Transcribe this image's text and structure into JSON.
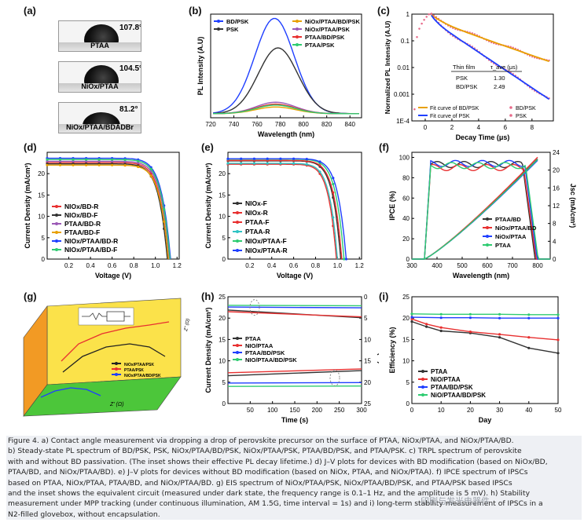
{
  "labels": {
    "a": "(a)",
    "b": "(b)",
    "c": "(c)",
    "d": "(d)",
    "e": "(e)",
    "f": "(f)",
    "g": "(g)",
    "h": "(h)",
    "i": "(i)"
  },
  "panel_a": {
    "images": [
      {
        "angle": "107.8°",
        "label": "PTAA"
      },
      {
        "angle": "104.5°",
        "label": "NiOx/PTAA"
      },
      {
        "angle": "81.2°",
        "label": "NiOx/PTAA/BDADBr"
      }
    ]
  },
  "chart_data": [
    {
      "id": "b",
      "type": "line",
      "xlabel": "Wavelength (nm)",
      "ylabel": "PL Intensity (A.U)",
      "x_ticks": [
        "720",
        "740",
        "760",
        "780",
        "800",
        "820",
        "840"
      ],
      "xlim": [
        720,
        850
      ],
      "legend": [
        "BD/PSK",
        "PSK",
        "NiOx/PTAA/BD/PSK",
        "NiOx/PTAA/PSK",
        "PTAA/BD/PSK",
        "PTAA/PSK"
      ],
      "series": [
        {
          "name": "BD/PSK",
          "color": "#1f3fff",
          "peak_x": 775,
          "peak": 1.0
        },
        {
          "name": "PSK",
          "color": "#333333",
          "peak_x": 778,
          "peak": 0.69
        },
        {
          "name": "NiOx/PTAA/BD/PSK",
          "color": "#e8a000",
          "peak_x": 776,
          "peak": 0.07
        },
        {
          "name": "NiOx/PTAA/PSK",
          "color": "#9b59b6",
          "peak_x": 776,
          "peak": 0.12
        },
        {
          "name": "PTAA/BD/PSK",
          "color": "#e83030",
          "peak_x": 776,
          "peak": 0.1
        },
        {
          "name": "PTAA/PSK",
          "color": "#2ecc71",
          "peak_x": 776,
          "peak": 0.09
        }
      ]
    },
    {
      "id": "c",
      "type": "line",
      "xlabel": "Decay Time (μs)",
      "ylabel": "Normalized PL Intensity (A.U)",
      "x_ticks": [
        "0",
        "2",
        "4",
        "6",
        "8"
      ],
      "y_ticks": [
        "1",
        "0.1",
        "0.01",
        "0.001",
        "1E-4"
      ],
      "xlim": [
        -1,
        9.6
      ],
      "ylog": [
        -4,
        0
      ],
      "legend": [
        "Fit curve of BD/PSK",
        "Fit curve of PSK",
        "BD/PSK",
        "PSK"
      ],
      "table": {
        "header": [
          "Thin film",
          "τ_ave (μs)"
        ],
        "rows": [
          [
            "PSK",
            "1.30"
          ],
          [
            "BD/PSK",
            "2.49"
          ]
        ]
      },
      "series": [
        {
          "name": "BD/PSK",
          "color": "#e8a000",
          "tau": 2.49
        },
        {
          "name": "PSK",
          "color": "#1f3fff",
          "tau": 1.3
        }
      ]
    },
    {
      "id": "d",
      "type": "line",
      "xlabel": "Voltage (V)",
      "ylabel": "Current Density (mA/cm²)",
      "x_ticks": [
        "0.2",
        "0.4",
        "0.6",
        "0.8",
        "1.0",
        "1.2"
      ],
      "y_ticks": [
        "0",
        "5",
        "10",
        "15",
        "20"
      ],
      "xlim": [
        0,
        1.22
      ],
      "ylim": [
        0,
        25
      ],
      "legend": [
        "NIOx/BD-R",
        "NIOx/BD-F",
        "PTAA/BD-R",
        "PTAA/BD-F",
        "NIOx/PTAA/BD-R",
        "NIOx/PTAA/BD-F"
      ],
      "series": [
        {
          "name": "NIOx/BD-R",
          "color": "#e83030",
          "jsc": 22.6,
          "voc": 1.12
        },
        {
          "name": "NIOx/BD-F",
          "color": "#333333",
          "jsc": 22.3,
          "voc": 1.11
        },
        {
          "name": "PTAA/BD-R",
          "color": "#9b59b6",
          "jsc": 22.9,
          "voc": 1.13
        },
        {
          "name": "PTAA/BD-F",
          "color": "#e8a000",
          "jsc": 22.0,
          "voc": 1.12
        },
        {
          "name": "NIOx/PTAA/BD-R",
          "color": "#1f3fff",
          "jsc": 23.6,
          "voc": 1.14
        },
        {
          "name": "NIOx/PTAA/BD-F",
          "color": "#2ecc71",
          "jsc": 23.3,
          "voc": 1.135
        }
      ]
    },
    {
      "id": "e",
      "type": "line",
      "xlabel": "Voltage (V)",
      "ylabel": "Current Density (mA/cm²)",
      "x_ticks": [
        "0.2",
        "0.4",
        "0.6",
        "0.8",
        "1.0",
        "1.2"
      ],
      "y_ticks": [
        "0",
        "5",
        "10",
        "15",
        "20"
      ],
      "xlim": [
        0,
        1.22
      ],
      "ylim": [
        0,
        25
      ],
      "legend": [
        "NIOx-F",
        "NIOx-R",
        "PTAA-F",
        "PTAA-R",
        "NIOx/PTAA-F",
        "NIOx/PTAA-R"
      ],
      "series": [
        {
          "name": "NIOx-F",
          "color": "#333333",
          "jsc": 23.0,
          "voc": 1.03
        },
        {
          "name": "NIOx-R",
          "color": "#e83030",
          "jsc": 23.1,
          "voc": 1.04
        },
        {
          "name": "PTAA-F",
          "color": "#e83030",
          "jsc": 22.2,
          "voc": 0.99
        },
        {
          "name": "PTAA-R",
          "color": "#2fc4c4",
          "jsc": 22.4,
          "voc": 1.0
        },
        {
          "name": "NIOx/PTAA-F",
          "color": "#2ecc71",
          "jsc": 23.4,
          "voc": 1.06
        },
        {
          "name": "NIOx/PTAA-R",
          "color": "#1f3fff",
          "jsc": 23.5,
          "voc": 1.08
        }
      ]
    },
    {
      "id": "f",
      "type": "line",
      "xlabel": "Wavelength (nm)",
      "ylabel": "IPCE (%)",
      "ylabel2": "Jsc (mA/cm²)",
      "x_ticks": [
        "300",
        "400",
        "500",
        "600",
        "700",
        "800"
      ],
      "y_ticks": [
        "0",
        "20",
        "40",
        "60",
        "80",
        "100"
      ],
      "y2_ticks": [
        "0",
        "4",
        "8",
        "12",
        "16",
        "20",
        "24"
      ],
      "xlim": [
        300,
        850
      ],
      "ylim": [
        0,
        105
      ],
      "y2lim": [
        0,
        24
      ],
      "legend": [
        "PTAA/BD",
        "NiOx/PTAA/BD",
        "NiOx/PTAA",
        "PTAA"
      ],
      "series": [
        {
          "name": "PTAA/BD",
          "color": "#333333",
          "plateau": 93,
          "jsc": 22.5
        },
        {
          "name": "NiOx/PTAA/BD",
          "color": "#e83030",
          "plateau": 90,
          "jsc": 22.9
        },
        {
          "name": "NiOx/PTAA",
          "color": "#1f3fff",
          "plateau": 94,
          "jsc": 22.2
        },
        {
          "name": "PTAA",
          "color": "#2ecc71",
          "plateau": 92,
          "jsc": 22.4
        }
      ]
    },
    {
      "id": "g",
      "type": "scatter",
      "xlabel": "Z' (Ω)",
      "ylabel": "Z'' (Ω)",
      "legend": [
        "NiOx/PTAA/PSK",
        "PTAA/PSK",
        "NiOx/PTAA/BD/PSK"
      ]
    },
    {
      "id": "h",
      "type": "line",
      "xlabel": "Time (s)",
      "ylabel": "Current Density (mA/cm²)",
      "ylabel2": "PCE (%)",
      "x_ticks": [
        "50",
        "100",
        "150",
        "200",
        "250",
        "300"
      ],
      "y_ticks": [
        "0",
        "5",
        "10",
        "15",
        "20",
        "25"
      ],
      "y2_ticks": [
        "0",
        "5",
        "10",
        "15",
        "20",
        "25"
      ],
      "xlim": [
        0,
        300
      ],
      "ylim": [
        0,
        25
      ],
      "legend": [
        "PTAA",
        "NIO/PTAA",
        "PTAA/BD/PSK",
        "NIO/PTAA/BD/PSK"
      ],
      "series": [
        {
          "name": "PTAA",
          "color": "#333333",
          "j": [
            21.9,
            20.1
          ],
          "pce": [
            18.5,
            17.3
          ]
        },
        {
          "name": "NIO/PTAA",
          "color": "#e83030",
          "j": [
            21.5,
            20.3
          ],
          "pce": [
            17.8,
            16.9
          ]
        },
        {
          "name": "PTAA/BD/PSK",
          "color": "#1f3fff",
          "j": [
            22.6,
            22.4
          ],
          "pce": [
            20.2,
            20.1
          ]
        },
        {
          "name": "NIO/PTAA/BD/PSK",
          "color": "#2ecc71",
          "j": [
            23.0,
            22.9
          ],
          "pce": [
            21.0,
            20.9
          ]
        }
      ]
    },
    {
      "id": "i",
      "type": "line",
      "xlabel": "Day",
      "ylabel": "Efficiency (%)",
      "x_ticks": [
        "0",
        "10",
        "20",
        "30",
        "40",
        "50"
      ],
      "y_ticks": [
        "0",
        "5",
        "10",
        "15",
        "20",
        "25"
      ],
      "xlim": [
        0,
        50
      ],
      "ylim": [
        0,
        25
      ],
      "legend": [
        "PTAA",
        "NiO/PTAA",
        "PTAA/BD/PSK",
        "NiO/PTAA/BD/PSK"
      ],
      "series": [
        {
          "name": "PTAA",
          "color": "#333333",
          "values": [
            [
              0,
              19.2
            ],
            [
              5,
              18.0
            ],
            [
              10,
              17.0
            ],
            [
              20,
              16.5
            ],
            [
              30,
              15.5
            ],
            [
              40,
              13.0
            ],
            [
              50,
              11.8
            ]
          ]
        },
        {
          "name": "NiO/PTAA",
          "color": "#e83030",
          "values": [
            [
              0,
              19.8
            ],
            [
              5,
              18.6
            ],
            [
              10,
              17.8
            ],
            [
              20,
              16.8
            ],
            [
              30,
              16.2
            ],
            [
              40,
              15.5
            ],
            [
              50,
              14.9
            ]
          ]
        },
        {
          "name": "PTAA/BD/PSK",
          "color": "#1f3fff",
          "values": [
            [
              0,
              20.2
            ],
            [
              10,
              20.1
            ],
            [
              20,
              20.1
            ],
            [
              30,
              20.0
            ],
            [
              40,
              20.0
            ],
            [
              50,
              20.0
            ]
          ]
        },
        {
          "name": "NiO/PTAA/BD/PSK",
          "color": "#2ecc71",
          "values": [
            [
              0,
              21.0
            ],
            [
              10,
              20.9
            ],
            [
              20,
              20.9
            ],
            [
              30,
              20.9
            ],
            [
              40,
              20.8
            ],
            [
              50,
              20.8
            ]
          ]
        }
      ]
    }
  ],
  "caption": {
    "lines": [
      "Figure 4. a) Contact angle measurement via dropping a drop of perovskite precursor on the surface of PTAA, NiOx/PTAA, and NiOx/PTAA/BD.",
      "b) Steady-state PL spectrum of BD/PSK, PSK, NiOx/PTAA/BD/PSK, NiOx/PTAA/PSK, PTAA/BD/PSK, and PTAA/PSK. c) TRPL spectrum of perovskite",
      "with and without BD passivation. (The inset shows their effective PL decay lifetime.) d) J–V plots for devices with BD modification (based on NiOx/BD,",
      "PTAA/BD, and NiOx/PTAA/BD). e) J–V plots for devices without BD modification (based on NiOx, PTAA, and NiOx/PTAA). f) IPCE spectrum of IPSCs",
      "based on PTAA, NiOx/PTAA, PTAA/BD, and NiOx/PTAA/BD. g) EIS spectrum of NiOx/PTAA/PSK, NiOx/PTAA/BD/PSK, and PTAA/PSK based IPSCs",
      "and the inset shows the equivalent circuit (measured under dark state, the frequency range is 0.1–1 Hz, and the amplitude is 5 mV). h) Stability",
      "measurement under MPP tracking (under continuous illumination, AM 1.5G, time interval = 1s) and i) long-term stability measurement of IPSCs in a",
      "N2-filled glovebox, without encapsulation."
    ]
  },
  "watermark": "印刷与发光电器件"
}
